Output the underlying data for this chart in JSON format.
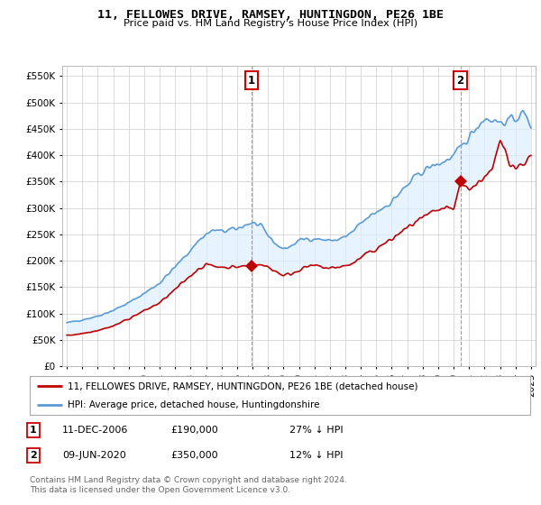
{
  "title": "11, FELLOWES DRIVE, RAMSEY, HUNTINGDON, PE26 1BE",
  "subtitle": "Price paid vs. HM Land Registry's House Price Index (HPI)",
  "yticks": [
    0,
    50000,
    100000,
    150000,
    200000,
    250000,
    300000,
    350000,
    400000,
    450000,
    500000,
    550000
  ],
  "ylim": [
    0,
    570000
  ],
  "xlim_start": 1994.7,
  "xlim_end": 2025.3,
  "hpi_color": "#5b9bd5",
  "hpi_fill_color": "#ddeeff",
  "price_color": "#c00000",
  "marker1_date_x": 2006.94,
  "marker1_date_label": "11-DEC-2006",
  "marker1_price": 190000,
  "marker1_pct": "27% ↓ HPI",
  "marker2_date_x": 2020.44,
  "marker2_date_label": "09-JUN-2020",
  "marker2_price": 350000,
  "marker2_pct": "12% ↓ HPI",
  "legend_line1": "11, FELLOWES DRIVE, RAMSEY, HUNTINGDON, PE26 1BE (detached house)",
  "legend_line2": "HPI: Average price, detached house, Huntingdonshire",
  "footnote": "Contains HM Land Registry data © Crown copyright and database right 2024.\nThis data is licensed under the Open Government Licence v3.0.",
  "bg_color": "#ffffff",
  "grid_color": "#cccccc",
  "annotation_box_color": "#cc0000"
}
